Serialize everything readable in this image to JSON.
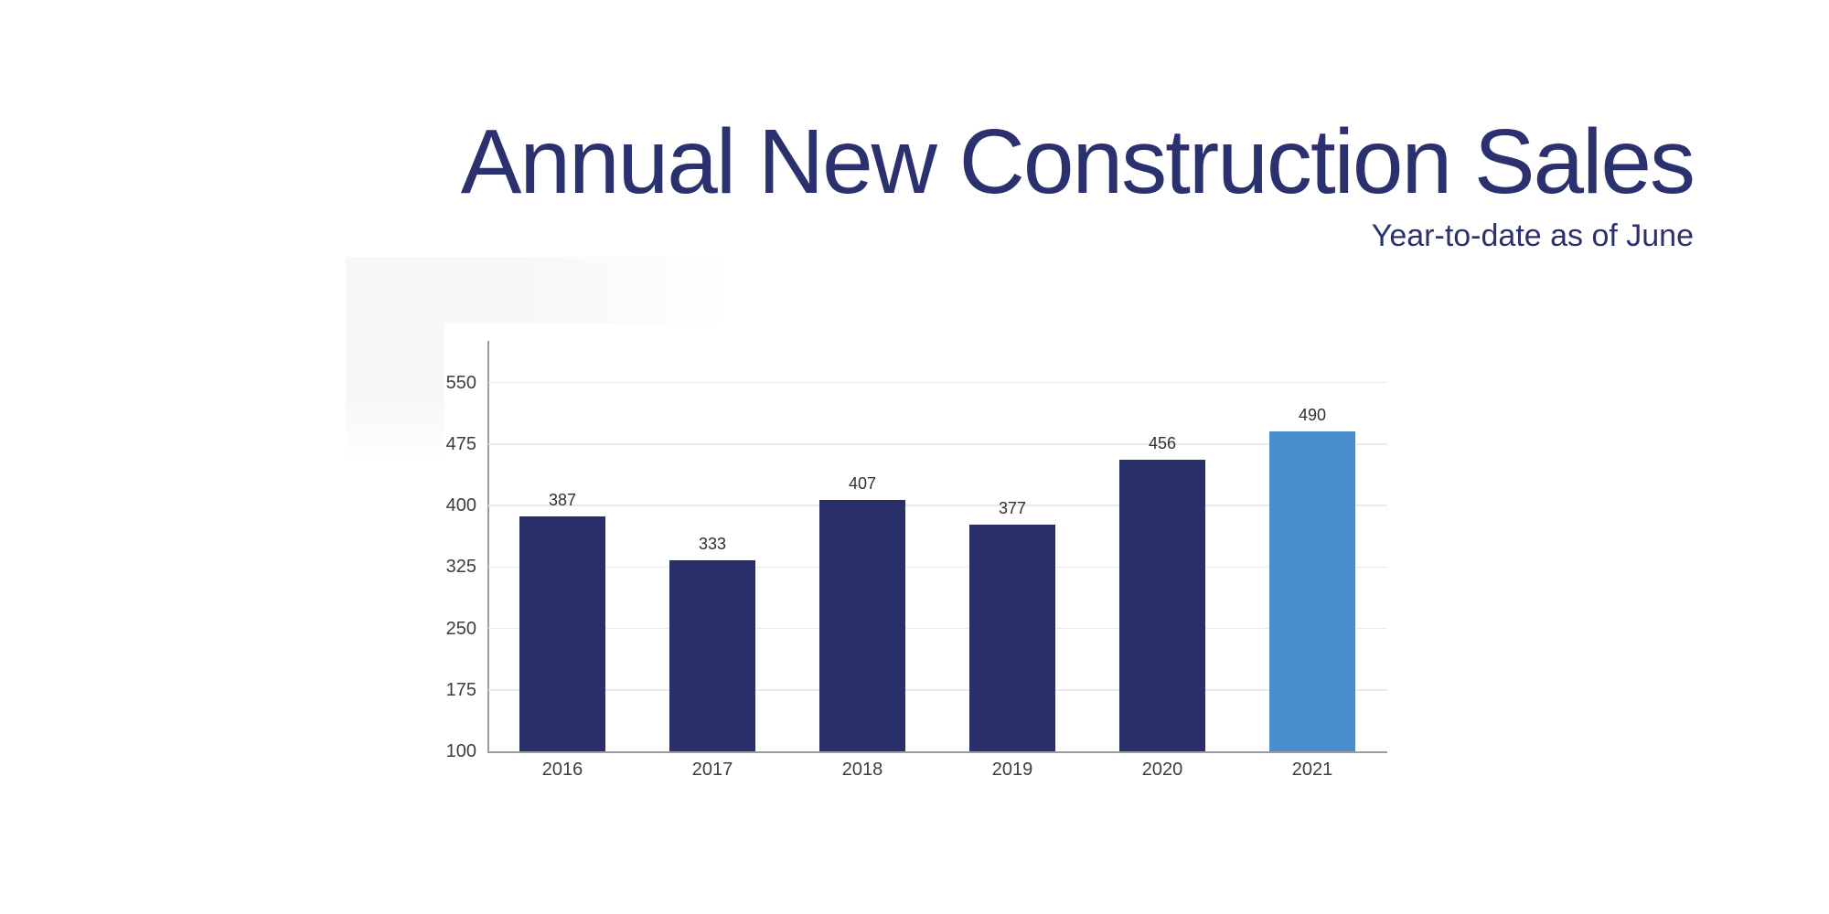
{
  "header": {
    "title": "Annual New Construction Sales",
    "subtitle": "Year-to-date as of June",
    "title_color": "#2b316e",
    "subtitle_color": "#2b316e"
  },
  "chart_data": {
    "type": "bar",
    "title": "Annual New Construction Sales",
    "subtitle": "Year-to-date as of June",
    "categories": [
      "2016",
      "2017",
      "2018",
      "2019",
      "2020",
      "2021"
    ],
    "values": [
      387,
      333,
      407,
      377,
      456,
      490
    ],
    "data_labels": [
      387,
      333,
      407,
      377,
      456,
      490
    ],
    "xlabel": "",
    "ylabel": "",
    "ylim": [
      100,
      601
    ],
    "yticks": [
      100,
      175,
      250,
      325,
      400,
      475,
      550
    ],
    "grid": true,
    "legend": "none",
    "default_bar_color": "#293069",
    "highlight_bar_color": "#4b8ecd",
    "highlight_index": 5,
    "axis_color": "#9b9ba1",
    "gridline_color": "#e9ebf1",
    "tick_label_color": "#3d3d3d",
    "data_label_color": "#2f2f2f"
  }
}
